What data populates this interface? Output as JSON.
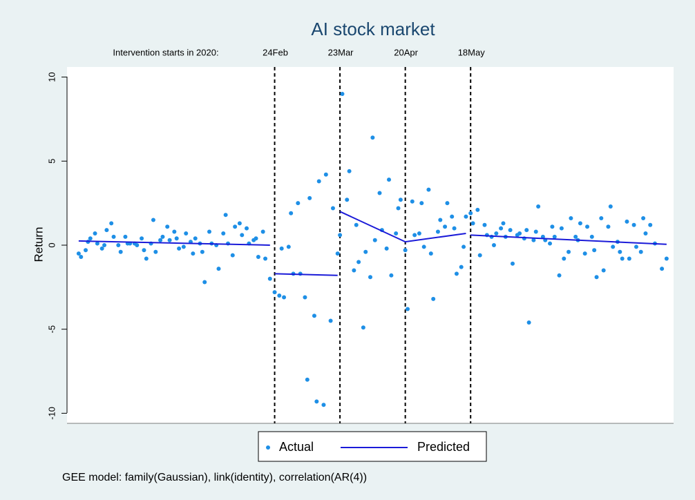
{
  "chart_data": {
    "type": "scatter",
    "title": "AI stock market",
    "y_label": "Return",
    "note": "GEE model: family(Gaussian), link(identity), correlation(AR(4))",
    "intervention_label": "Intervention starts in 2020:",
    "events": [
      {
        "label": "24Feb",
        "x": 0
      },
      {
        "label": "23Mar",
        "x": 28
      },
      {
        "label": "20Apr",
        "x": 56
      },
      {
        "label": "18May",
        "x": 84
      }
    ],
    "xlim": [
      -89,
      171
    ],
    "ylim": [
      -10.6,
      10.6
    ],
    "yticks": [
      10,
      5,
      0,
      -5,
      -10
    ],
    "legend": "bottom",
    "series": [
      {
        "name": "Actual",
        "type": "scatter",
        "color": "#1e8fe6",
        "x": [
          -84,
          -83,
          -81,
          -80,
          -79,
          -77,
          -76,
          -74,
          -73,
          -72,
          -70,
          -69,
          -67,
          -66,
          -64,
          -63,
          -62,
          -60,
          -59,
          -57,
          -56,
          -55,
          -53,
          -52,
          -51,
          -49,
          -48,
          -46,
          -45,
          -43,
          -42,
          -41,
          -39,
          -38,
          -36,
          -35,
          -34,
          -32,
          -31,
          -30,
          -28,
          -27,
          -25,
          -24,
          -22,
          -21,
          -20,
          -18,
          -17,
          -15,
          -14,
          -12,
          -11,
          -9,
          -8,
          -7,
          -5,
          -4,
          -2,
          0,
          2,
          3,
          4,
          6,
          7,
          8,
          10,
          11,
          13,
          14,
          15,
          17,
          18,
          19,
          21,
          22,
          24,
          25,
          27,
          28,
          29,
          31,
          32,
          34,
          35,
          36,
          38,
          39,
          41,
          42,
          43,
          45,
          46,
          48,
          49,
          50,
          52,
          53,
          54,
          56,
          57,
          59,
          60,
          62,
          63,
          64,
          66,
          67,
          68,
          70,
          71,
          73,
          74,
          76,
          77,
          78,
          80,
          81,
          82,
          84,
          85,
          87,
          88,
          90,
          91,
          93,
          94,
          95,
          97,
          98,
          99,
          101,
          102,
          104,
          105,
          107,
          108,
          109,
          111,
          112,
          113,
          115,
          116,
          118,
          119,
          120,
          122,
          123,
          124,
          126,
          127,
          129,
          130,
          131,
          133,
          134,
          136,
          137,
          138,
          140,
          141,
          143,
          144,
          145,
          147,
          148,
          149,
          151,
          152,
          154,
          155,
          157,
          158,
          159,
          161,
          163,
          166,
          168
        ],
        "values": [
          -0.5,
          -0.7,
          -0.3,
          0.2,
          0.4,
          0.7,
          0.1,
          -0.2,
          0,
          0.9,
          1.3,
          0.5,
          0,
          -0.4,
          0.5,
          0.1,
          0.1,
          0.1,
          0,
          0.4,
          -0.3,
          -0.8,
          0.1,
          1.5,
          -0.4,
          0.3,
          0.5,
          1.1,
          0.3,
          0.8,
          0.4,
          -0.2,
          -0.1,
          0.7,
          0.2,
          -0.5,
          0.4,
          0.1,
          -0.4,
          -2.2,
          0.8,
          0.1,
          0,
          -1.4,
          0.7,
          1.8,
          0.1,
          -0.6,
          1.1,
          1.3,
          0.6,
          1.0,
          0.1,
          0.3,
          0.4,
          -0.7,
          0.8,
          -0.8,
          -2.0,
          -2.8,
          -3.0,
          -0.2,
          -3.1,
          -0.1,
          1.9,
          -1.7,
          2.5,
          -1.7,
          -3.1,
          -8.0,
          2.8,
          -4.2,
          -9.3,
          3.8,
          -9.5,
          4.2,
          -4.5,
          2.2,
          -0.5,
          0.6,
          9.0,
          2.7,
          4.4,
          -1.5,
          1.2,
          -1.0,
          -4.9,
          -0.4,
          -1.9,
          6.4,
          0.3,
          3.1,
          0.9,
          -0.2,
          3.9,
          -1.8,
          0.7,
          2.2,
          2.7,
          -0.3,
          -3.8,
          2.6,
          0.6,
          0.7,
          2.5,
          -0.1,
          3.3,
          -0.5,
          -3.2,
          0.8,
          1.5,
          1.1,
          2.5,
          1.7,
          1.0,
          -1.7,
          -1.3,
          -0.1,
          1.7,
          1.9,
          1.3,
          2.1,
          -0.6,
          1.2,
          0.6,
          0.5,
          0.0,
          0.7,
          1.0,
          1.3,
          0.5,
          0.9,
          -1.1,
          0.6,
          0.7,
          0.4,
          0.9,
          -4.6,
          0.3,
          0.8,
          2.3,
          0.5,
          0.3,
          0.1,
          1.1,
          0.5,
          -1.8,
          1.0,
          -0.8,
          -0.4,
          1.6,
          0.5,
          0.3,
          1.3,
          -0.5,
          1.1,
          0.5,
          -0.3,
          -1.9,
          1.6,
          -1.5,
          1.1,
          2.3,
          -0.1,
          0.2,
          -0.4,
          -0.8,
          1.4,
          -0.8,
          1.2,
          -0.1,
          -0.4,
          1.6,
          0.7,
          1.2,
          0.1,
          -1.4,
          -0.8
        ]
      },
      {
        "name": "Predicted",
        "type": "line",
        "color": "#1a1ad8",
        "x": [
          -84,
          -2,
          null,
          0,
          27,
          null,
          28,
          56,
          82,
          null,
          84,
          168
        ],
        "values": [
          0.25,
          0.0,
          null,
          -1.7,
          -1.8,
          null,
          2.0,
          0.2,
          0.7,
          null,
          0.6,
          0.05
        ]
      }
    ]
  }
}
